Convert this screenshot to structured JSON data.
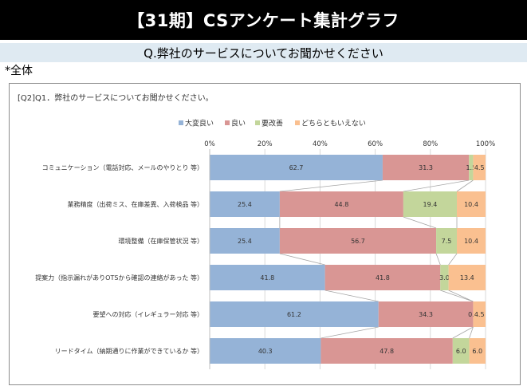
{
  "header": {
    "title": "【31期】CSアンケート集計グラフ",
    "question": "Q.弊社のサービスについてお聞かせください",
    "scope": "*全体"
  },
  "chart_data": {
    "type": "bar",
    "orientation": "horizontal",
    "stacked": "percent",
    "title": "[Q2]Q1．弊社のサービスについてお聞かせください。",
    "xlim": [
      0,
      100
    ],
    "x_ticks": [
      "0%",
      "20%",
      "40%",
      "60%",
      "80%",
      "100%"
    ],
    "legend_position": "top",
    "grid": true,
    "series_lines": true,
    "categories": [
      "コミュニケーション（電話対応、メールのやりとり 等）",
      "業務精度（出荷ミス、在庫差異、入荷検品 等）",
      "環境整備（在庫保管状況 等）",
      "提案力（指示漏れがありOTSから確認の連絡があった 等）",
      "要望への対応（イレギュラー対応 等）",
      "リードタイム（納期通りに作業ができているか 等）"
    ],
    "series": [
      {
        "name": "大変良い",
        "color": "#95b3d7",
        "values": [
          62.7,
          25.4,
          25.4,
          41.8,
          61.2,
          40.3
        ],
        "labels": [
          "62.7",
          "25.4",
          "25.4",
          "41.8",
          "61.2",
          "40.3"
        ]
      },
      {
        "name": "良い",
        "color": "#d99694",
        "values": [
          31.3,
          44.8,
          56.7,
          41.8,
          34.3,
          47.8
        ],
        "labels": [
          "31.3",
          "44.8",
          "56.7",
          "41.8",
          "34.3",
          "47.8"
        ]
      },
      {
        "name": "要改善",
        "color": "#c3d69b",
        "values": [
          1.5,
          19.4,
          7.5,
          3.0,
          0.0,
          6.0
        ],
        "labels": [
          "1.5",
          "19.4",
          "7.5",
          "3.0",
          "0.0",
          "6.0"
        ]
      },
      {
        "name": "どちらともいえない",
        "color": "#fac090",
        "values": [
          4.5,
          10.4,
          10.4,
          13.4,
          4.5,
          6.0
        ],
        "labels": [
          "4.5",
          "10.4",
          "10.4",
          "13.4",
          "4.5",
          "6.0"
        ]
      }
    ]
  }
}
